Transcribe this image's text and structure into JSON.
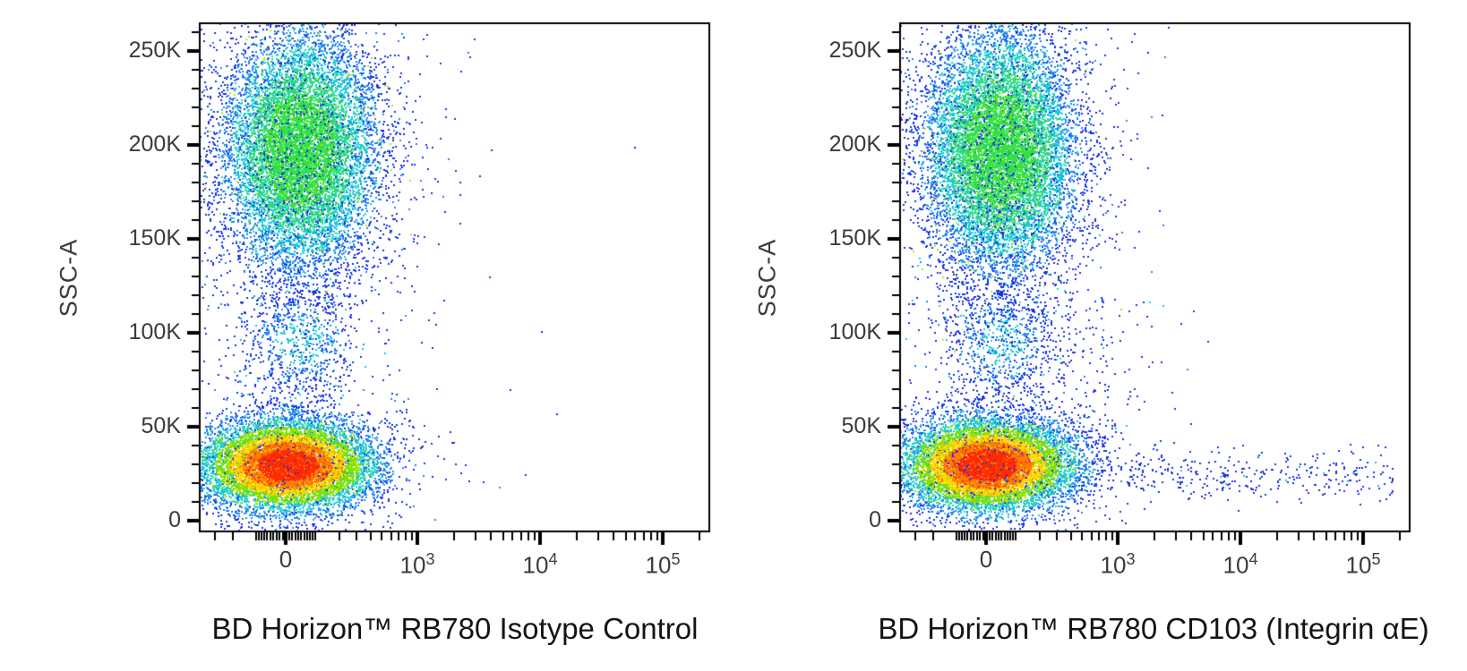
{
  "page": {
    "background": "#ffffff",
    "frame_color": "#000000",
    "tick_label_color": "#3b3b3b",
    "title_color": "#141414"
  },
  "chart_data": [
    {
      "type": "pseudocolor_scatter",
      "xlabel": "BD Horizon™ RB780 Isotype Control",
      "ylabel": "SSC-A",
      "legend": "none",
      "grid": "off",
      "x_scale": {
        "kind": "biexponential",
        "zero_pos": 0.17,
        "decade_width": 0.24,
        "linear_coeff": 170,
        "majors": [
          {
            "label": "0",
            "value": 0
          },
          {
            "base": "10",
            "exp": "3",
            "value": 1000
          },
          {
            "base": "10",
            "exp": "4",
            "value": 10000
          },
          {
            "base": "10",
            "exp": "5",
            "value": 100000
          }
        ]
      },
      "y_scale": {
        "kind": "linear",
        "zero_pos": 0.023,
        "pos_250k": 0.944,
        "minor_step": 10000,
        "max_minor": 260000,
        "majors": [
          {
            "label": "0",
            "value": 0
          },
          {
            "label": "50K",
            "value": 50000
          },
          {
            "label": "100K",
            "value": 100000
          },
          {
            "label": "150K",
            "value": 150000
          },
          {
            "label": "200K",
            "value": 200000
          },
          {
            "label": "250K",
            "value": 250000
          }
        ]
      },
      "populations": [
        {
          "name": "mid-scatter-column",
          "seed": 31,
          "type": "column",
          "count": 600,
          "cx": 0.196,
          "sx": 0.068,
          "y_range": [
            0.17,
            0.66
          ],
          "colors": [
            {
              "c": "#1832e6",
              "p": 0.86
            },
            {
              "c": "#17cdd8",
              "p": 0.12
            },
            {
              "c": "#2bd98d",
              "p": 0.02
            }
          ]
        },
        {
          "name": "monocyte-blob",
          "seed": 23,
          "type": "gauss",
          "count": 560,
          "cx": 0.196,
          "cy": 0.375,
          "sx": 0.06,
          "sy": 0.058,
          "tail_p": 0.08,
          "tail_mult": 2.0,
          "speckle_p": 0.2,
          "rings": [
            {
              "r": 0.8,
              "c": "#17cdd8"
            },
            {
              "r": 1.3,
              "c": "#1f86f0"
            },
            {
              "r": 9,
              "c": "#1832e6"
            }
          ]
        },
        {
          "name": "granulocytes",
          "seed": 7,
          "type": "gauss",
          "count": 11000,
          "cx": 0.197,
          "cy": 0.75,
          "sx": 0.075,
          "sy": 0.118,
          "tail_p": 0.05,
          "tail_mult": 1.8,
          "speckle_p": 0.25,
          "noise_p": 0.12,
          "noise_c": "#1832e6",
          "spark_p": 0.02,
          "spark_c": "#b7e900",
          "rings": [
            {
              "r": 0.95,
              "c": "#35e23c"
            },
            {
              "r": 1.35,
              "c": "#2bd98d"
            },
            {
              "r": 1.75,
              "c": "#17cdd8"
            },
            {
              "r": 2.15,
              "c": "#1f86f0"
            },
            {
              "r": 9,
              "c": "#1832e6"
            }
          ]
        },
        {
          "name": "lymphocytes",
          "seed": 11,
          "type": "gauss",
          "count": 10500,
          "cx": 0.172,
          "cy": 0.133,
          "sx": 0.084,
          "sy": 0.044,
          "tail_p": 0.05,
          "tail_mult": 1.8,
          "speckle_p": 0.22,
          "noise_p": 0.05,
          "noise_c": "#1832e6",
          "rings": [
            {
              "r": 0.7,
              "c": "#ff2a00"
            },
            {
              "r": 1.05,
              "c": "#ff7a00"
            },
            {
              "r": 1.35,
              "c": "#ffd800"
            },
            {
              "r": 1.7,
              "c": "#7de200"
            },
            {
              "r": 2.1,
              "c": "#1ecfd0"
            },
            {
              "r": 2.55,
              "c": "#1f86f0"
            },
            {
              "r": 9,
              "c": "#1832e6"
            }
          ]
        }
      ],
      "strays": [
        [
          0.851,
          0.756
        ],
        [
          0.5,
          0.71
        ],
        [
          0.51,
          0.607
        ]
      ]
    },
    {
      "type": "pseudocolor_scatter",
      "xlabel": "BD Horizon™ RB780 CD103 (Integrin αE)",
      "ylabel": "SSC-A",
      "legend": "none",
      "grid": "off",
      "x_scale": {
        "kind": "biexponential",
        "zero_pos": 0.17,
        "decade_width": 0.24,
        "linear_coeff": 170,
        "majors": [
          {
            "label": "0",
            "value": 0
          },
          {
            "base": "10",
            "exp": "3",
            "value": 1000
          },
          {
            "base": "10",
            "exp": "4",
            "value": 10000
          },
          {
            "base": "10",
            "exp": "5",
            "value": 100000
          }
        ]
      },
      "y_scale": {
        "kind": "linear",
        "zero_pos": 0.023,
        "pos_250k": 0.944,
        "minor_step": 10000,
        "max_minor": 260000,
        "majors": [
          {
            "label": "0",
            "value": 0
          },
          {
            "label": "50K",
            "value": 50000
          },
          {
            "label": "100K",
            "value": 100000
          },
          {
            "label": "150K",
            "value": 150000
          },
          {
            "label": "200K",
            "value": 200000
          },
          {
            "label": "250K",
            "value": 250000
          }
        ]
      },
      "populations": [
        {
          "name": "mid-scatter-column",
          "seed": 37,
          "type": "column",
          "count": 620,
          "cx": 0.196,
          "sx": 0.07,
          "y_range": [
            0.17,
            0.66
          ],
          "colors": [
            {
              "c": "#1832e6",
              "p": 0.86
            },
            {
              "c": "#17cdd8",
              "p": 0.12
            },
            {
              "c": "#2bd98d",
              "p": 0.02
            }
          ]
        },
        {
          "name": "monocyte-blob",
          "seed": 29,
          "type": "gauss",
          "count": 540,
          "cx": 0.196,
          "cy": 0.375,
          "sx": 0.06,
          "sy": 0.058,
          "tail_p": 0.08,
          "tail_mult": 2.0,
          "speckle_p": 0.2,
          "rings": [
            {
              "r": 0.8,
              "c": "#17cdd8"
            },
            {
              "r": 1.3,
              "c": "#1f86f0"
            },
            {
              "r": 9,
              "c": "#1832e6"
            }
          ]
        },
        {
          "name": "cd103-smear",
          "seed": 53,
          "type": "column",
          "count": 330,
          "cx": 0.3,
          "sx": 0.1,
          "y_range": [
            0.08,
            0.46
          ],
          "colors": [
            {
              "c": "#1832e6",
              "p": 0.92
            },
            {
              "c": "#17cdd8",
              "p": 0.08
            }
          ]
        },
        {
          "name": "cd103-positive-band",
          "seed": 47,
          "type": "band",
          "count": 310,
          "x_range": [
            0.44,
            0.965
          ],
          "cy": 0.112,
          "sy": 0.024,
          "colors": [
            {
              "c": "#1832e6",
              "p": 0.94
            },
            {
              "c": "#17cdd8",
              "p": 0.06
            }
          ]
        },
        {
          "name": "granulocytes",
          "seed": 13,
          "type": "gauss",
          "count": 11000,
          "cx": 0.197,
          "cy": 0.75,
          "sx": 0.075,
          "sy": 0.118,
          "tail_p": 0.05,
          "tail_mult": 1.8,
          "speckle_p": 0.25,
          "noise_p": 0.12,
          "noise_c": "#1832e6",
          "spark_p": 0.02,
          "spark_c": "#b7e900",
          "rings": [
            {
              "r": 0.95,
              "c": "#35e23c"
            },
            {
              "r": 1.35,
              "c": "#2bd98d"
            },
            {
              "r": 1.75,
              "c": "#17cdd8"
            },
            {
              "r": 2.15,
              "c": "#1f86f0"
            },
            {
              "r": 9,
              "c": "#1832e6"
            }
          ]
        },
        {
          "name": "lymphocytes",
          "seed": 17,
          "type": "gauss",
          "count": 10500,
          "cx": 0.172,
          "cy": 0.133,
          "sx": 0.084,
          "sy": 0.044,
          "tail_p": 0.05,
          "tail_mult": 1.8,
          "speckle_p": 0.22,
          "noise_p": 0.05,
          "noise_c": "#1832e6",
          "rings": [
            {
              "r": 0.7,
              "c": "#ff2a00"
            },
            {
              "r": 1.05,
              "c": "#ff7a00"
            },
            {
              "r": 1.35,
              "c": "#ffd800"
            },
            {
              "r": 1.7,
              "c": "#7de200"
            },
            {
              "r": 2.1,
              "c": "#1ecfd0"
            },
            {
              "r": 2.55,
              "c": "#1f86f0"
            },
            {
              "r": 9,
              "c": "#1832e6"
            }
          ]
        }
      ],
      "strays": [
        [
          0.513,
          0.819
        ],
        [
          0.44,
          0.653
        ]
      ]
    }
  ]
}
